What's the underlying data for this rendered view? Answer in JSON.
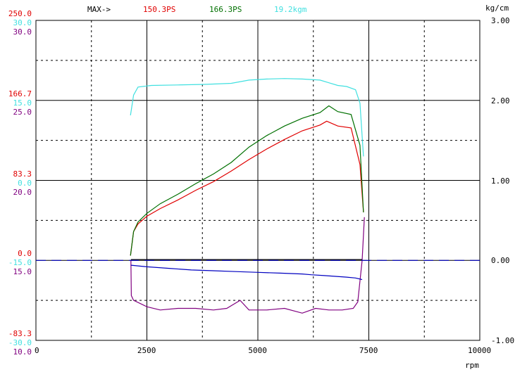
{
  "header": {
    "max_label": "MAX->",
    "max_ps": "150.3PS",
    "max_ps2": "166.3PS",
    "max_kgm": "19.2kgm",
    "unit_kgcm": "kg/cm"
  },
  "colors": {
    "red": "#e00000",
    "green": "#007000",
    "cyan": "#40e0e0",
    "purple": "#800080",
    "blue": "#0000c0",
    "grid": "#000000"
  },
  "left_axis": [
    {
      "text": "250.0",
      "color": "#e00000"
    },
    {
      "text": "30.0",
      "color": "#40e0e0"
    },
    {
      "text": "30.0",
      "color": "#800080"
    },
    {
      "text": "166.7",
      "color": "#e00000"
    },
    {
      "text": "15.0",
      "color": "#40e0e0"
    },
    {
      "text": "25.0",
      "color": "#800080"
    },
    {
      "text": "83.3",
      "color": "#e00000"
    },
    {
      "text": "0.0",
      "color": "#40e0e0"
    },
    {
      "text": "20.0",
      "color": "#800080"
    },
    {
      "text": "0.0",
      "color": "#e00000"
    },
    {
      "text": "-15.0",
      "color": "#40e0e0"
    },
    {
      "text": "15.0",
      "color": "#800080"
    },
    {
      "text": "-83.3",
      "color": "#e00000"
    },
    {
      "text": "-30.0",
      "color": "#40e0e0"
    },
    {
      "text": "10.0",
      "color": "#800080"
    }
  ],
  "right_axis": [
    "3.00",
    "2.00",
    "1.00",
    "0.00",
    "-1.00"
  ],
  "x_axis": {
    "ticks": [
      "0",
      "2500",
      "5000",
      "7500",
      "10000"
    ],
    "unit": "rpm"
  },
  "chart_data": {
    "type": "line",
    "x_unit": "rpm",
    "xlim": [
      0,
      10000
    ],
    "power_axis_ps": [
      -83.3,
      250.0
    ],
    "torque_axis_kgm": [
      -30.0,
      30.0
    ],
    "afr_axis": [
      10.0,
      30.0
    ],
    "boost_axis_kgcm": [
      -1.0,
      3.0
    ],
    "grid": true,
    "series": [
      {
        "name": "150.3PS",
        "color": "#e00000",
        "axis": "power_axis_ps",
        "x": [
          2130,
          2200,
          2300,
          2500,
          2800,
          3200,
          3600,
          4000,
          4400,
          4800,
          5200,
          5600,
          6000,
          6400,
          6550,
          6800,
          7100,
          7300,
          7380
        ],
        "y": [
          5,
          30,
          38,
          46,
          54,
          63,
          73,
          82,
          93,
          105,
          116,
          126,
          135,
          141,
          145,
          140,
          138,
          100,
          50
        ]
      },
      {
        "name": "166.3PS",
        "color": "#007000",
        "axis": "power_axis_ps",
        "x": [
          2130,
          2200,
          2300,
          2500,
          2800,
          3200,
          3600,
          4000,
          4400,
          4800,
          5200,
          5600,
          6000,
          6400,
          6600,
          6800,
          7100,
          7300,
          7380
        ],
        "y": [
          5,
          30,
          40,
          49,
          59,
          69,
          80,
          90,
          102,
          118,
          130,
          140,
          148,
          154,
          161,
          155,
          152,
          120,
          50
        ]
      },
      {
        "name": "19.2kgm",
        "color": "#40e0e0",
        "axis": "torque_axis_kgm",
        "x": [
          2130,
          2200,
          2300,
          2600,
          3200,
          3800,
          4400,
          4800,
          5200,
          5600,
          6000,
          6400,
          6600,
          6800,
          7000,
          7200,
          7300,
          7380
        ],
        "y": [
          12.2,
          16.0,
          17.5,
          17.8,
          17.9,
          18.0,
          18.2,
          18.8,
          19.0,
          19.1,
          19.0,
          18.8,
          18.3,
          17.8,
          17.6,
          17.0,
          14.5,
          4.5
        ]
      },
      {
        "color": "#800080",
        "axis": "afr_axis",
        "x": [
          2140,
          2150,
          2200,
          2500,
          2800,
          3200,
          3600,
          4000,
          4300,
          4600,
          4800,
          5200,
          5600,
          6000,
          6300,
          6600,
          6900,
          7150,
          7250,
          7350,
          7400
        ],
        "y": [
          15.0,
          12.8,
          12.5,
          12.1,
          11.9,
          12.0,
          12.0,
          11.9,
          12.0,
          12.5,
          11.9,
          11.9,
          12.0,
          11.7,
          12.0,
          11.9,
          11.9,
          12.0,
          12.4,
          15.0,
          17.7
        ]
      },
      {
        "color": "#0000c0",
        "axis": "boost_axis_kgcm",
        "x": [
          2140,
          2500,
          3000,
          3500,
          4000,
          4500,
          5000,
          5500,
          6000,
          6200,
          6500,
          7000,
          7200,
          7350
        ],
        "y": [
          -0.06,
          -0.08,
          -0.1,
          -0.12,
          -0.13,
          -0.14,
          -0.15,
          -0.16,
          -0.17,
          -0.18,
          -0.19,
          -0.21,
          -0.22,
          -0.24
        ]
      },
      {
        "color": "#000000",
        "axis": "boost_axis_kgcm",
        "x": [
          2140,
          7350
        ],
        "y": [
          0.01,
          0.01
        ]
      },
      {
        "color": "#0000c0",
        "axis": "boost_axis_kgcm",
        "dashed": true,
        "x": [
          0,
          10000
        ],
        "y": [
          0.0,
          0.0
        ]
      }
    ]
  }
}
